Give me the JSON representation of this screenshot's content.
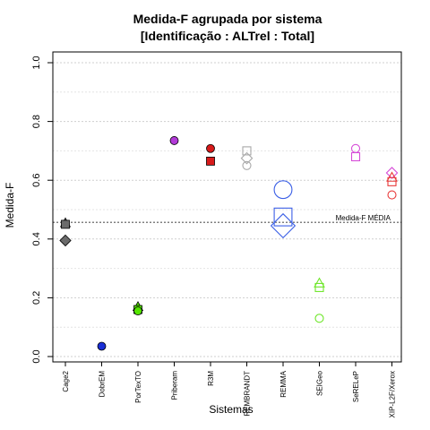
{
  "chart_data": {
    "type": "scatter",
    "title": "Medida-F agrupada por sistema",
    "subtitle": "[Identificação : ALTrel : Total]",
    "xlabel": "Sistemas",
    "ylabel": "Medida-F",
    "ylim": [
      0.0,
      1.0
    ],
    "yticks": [
      "0.0",
      "0.2",
      "0.4",
      "0.6",
      "0.8",
      "1.0"
    ],
    "grid": true,
    "categories": [
      "Cage2",
      "DobrEM",
      "PorTexTO",
      "Priberam",
      "R3M",
      "REMBRANDT",
      "REMMA",
      "SEIGeo",
      "SeRELeP",
      "XIP-L2F/Xerox"
    ],
    "reference_line": {
      "label": "Medida-F MÉDIA",
      "value": 0.457
    },
    "points": [
      {
        "category": "Cage2",
        "marker": "triangle",
        "filled": true,
        "color": "#6b6b6b",
        "size": 1,
        "y": 0.455
      },
      {
        "category": "Cage2",
        "marker": "square",
        "filled": true,
        "color": "#6b6b6b",
        "size": 1,
        "y": 0.45
      },
      {
        "category": "Cage2",
        "marker": "diamond",
        "filled": true,
        "color": "#6b6b6b",
        "size": 1,
        "y": 0.395
      },
      {
        "category": "DobrEM",
        "marker": "circle",
        "filled": true,
        "color": "#1a2fd6",
        "size": 1,
        "y": 0.035
      },
      {
        "category": "PorTexTO",
        "marker": "triangle",
        "filled": true,
        "color": "#55e600",
        "size": 1,
        "y": 0.17
      },
      {
        "category": "PorTexTO",
        "marker": "square",
        "filled": true,
        "color": "#55e600",
        "size": 1,
        "y": 0.16
      },
      {
        "category": "PorTexTO",
        "marker": "circle",
        "filled": true,
        "color": "#55e600",
        "size": 1,
        "y": 0.155
      },
      {
        "category": "Priberam",
        "marker": "circle",
        "filled": true,
        "color": "#b23ad8",
        "size": 1,
        "y": 0.735
      },
      {
        "category": "R3M",
        "marker": "circle",
        "filled": true,
        "color": "#d71a1a",
        "size": 1,
        "y": 0.708
      },
      {
        "category": "R3M",
        "marker": "square",
        "filled": true,
        "color": "#d71a1a",
        "size": 1,
        "y": 0.665
      },
      {
        "category": "REMBRANDT",
        "marker": "square",
        "filled": false,
        "color": "#a8a8a8",
        "size": 1,
        "y": 0.7
      },
      {
        "category": "REMBRANDT",
        "marker": "diamond",
        "filled": false,
        "color": "#a8a8a8",
        "size": 1,
        "y": 0.675
      },
      {
        "category": "REMBRANDT",
        "marker": "circle",
        "filled": false,
        "color": "#a8a8a8",
        "size": 1,
        "y": 0.65
      },
      {
        "category": "REMMA",
        "marker": "circle",
        "filled": false,
        "color": "#3b5fe6",
        "size": 2.2,
        "y": 0.568
      },
      {
        "category": "REMMA",
        "marker": "square",
        "filled": false,
        "color": "#3b5fe6",
        "size": 2.2,
        "y": 0.475
      },
      {
        "category": "REMMA",
        "marker": "diamond",
        "filled": false,
        "color": "#3b5fe6",
        "size": 2.2,
        "y": 0.445
      },
      {
        "category": "SEIGeo",
        "marker": "triangle",
        "filled": false,
        "color": "#6fe62b",
        "size": 1,
        "y": 0.25
      },
      {
        "category": "SEIGeo",
        "marker": "square",
        "filled": false,
        "color": "#6fe62b",
        "size": 1,
        "y": 0.235
      },
      {
        "category": "SEIGeo",
        "marker": "circle",
        "filled": false,
        "color": "#6fe62b",
        "size": 1,
        "y": 0.13
      },
      {
        "category": "SeRELeP",
        "marker": "circle",
        "filled": false,
        "color": "#d64bd8",
        "size": 1,
        "y": 0.708
      },
      {
        "category": "SeRELeP",
        "marker": "square",
        "filled": false,
        "color": "#d64bd8",
        "size": 1,
        "y": 0.68
      },
      {
        "category": "XIP-L2F/Xerox",
        "marker": "diamond",
        "filled": false,
        "color": "#d64bd8",
        "size": 1,
        "y": 0.625
      },
      {
        "category": "XIP-L2F/Xerox",
        "marker": "triangle",
        "filled": false,
        "color": "#e83a3a",
        "size": 1,
        "y": 0.61
      },
      {
        "category": "XIP-L2F/Xerox",
        "marker": "square",
        "filled": false,
        "color": "#e83a3a",
        "size": 1,
        "y": 0.595
      },
      {
        "category": "XIP-L2F/Xerox",
        "marker": "circle",
        "filled": false,
        "color": "#e83a3a",
        "size": 1,
        "y": 0.55
      }
    ]
  }
}
